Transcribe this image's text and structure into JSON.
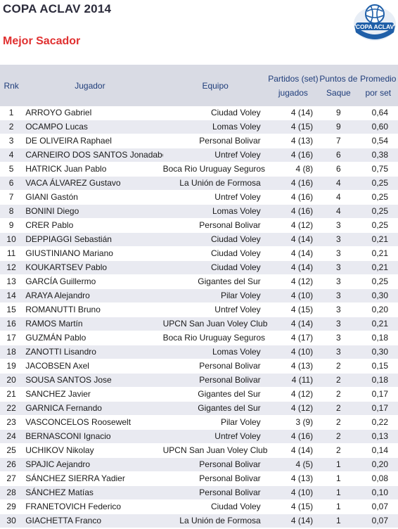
{
  "header": {
    "title": "COPA ACLAV 2014",
    "subtitle": "Mejor Sacador",
    "logo_text": "COPA ACLAV"
  },
  "table": {
    "columns": {
      "rank": "Rnk",
      "player": "Jugador",
      "team": "Equipo",
      "matches": "Partidos (set) jugados",
      "points": "Puntos de Saque",
      "average": "Promedio por set"
    },
    "rows": [
      {
        "rank": "1",
        "player": "ARROYO Gabriel",
        "team": "Ciudad Voley",
        "matches": "4 (14)",
        "points": "9",
        "average": "0,64"
      },
      {
        "rank": "2",
        "player": "OCAMPO Lucas",
        "team": "Lomas Voley",
        "matches": "4 (15)",
        "points": "9",
        "average": "0,60"
      },
      {
        "rank": "3",
        "player": "DE OLIVEIRA Raphael",
        "team": "Personal Bolivar",
        "matches": "4 (13)",
        "points": "7",
        "average": "0,54"
      },
      {
        "rank": "4",
        "player": "CARNEIRO DOS SANTOS Jonadabe",
        "team": "Untref Voley",
        "matches": "4 (16)",
        "points": "6",
        "average": "0,38"
      },
      {
        "rank": "5",
        "player": "HATRICK Juan Pablo",
        "team": "Boca Rio Uruguay Seguros",
        "matches": "4 (8)",
        "points": "6",
        "average": "0,75"
      },
      {
        "rank": "6",
        "player": "VACA ÁLVAREZ Gustavo",
        "team": "La Unión de Formosa",
        "matches": "4 (16)",
        "points": "4",
        "average": "0,25"
      },
      {
        "rank": "7",
        "player": "GIANI Gastón",
        "team": "Untref Voley",
        "matches": "4 (16)",
        "points": "4",
        "average": "0,25"
      },
      {
        "rank": "8",
        "player": "BONINI Diego",
        "team": "Lomas Voley",
        "matches": "4 (16)",
        "points": "4",
        "average": "0,25"
      },
      {
        "rank": "9",
        "player": "CRER Pablo",
        "team": "Personal Bolivar",
        "matches": "4 (12)",
        "points": "3",
        "average": "0,25"
      },
      {
        "rank": "10",
        "player": "DEPPIAGGI Sebastián",
        "team": "Ciudad Voley",
        "matches": "4 (14)",
        "points": "3",
        "average": "0,21"
      },
      {
        "rank": "11",
        "player": "GIUSTINIANO Mariano",
        "team": "Ciudad Voley",
        "matches": "4 (14)",
        "points": "3",
        "average": "0,21"
      },
      {
        "rank": "12",
        "player": "KOUKARTSEV Pablo",
        "team": "Ciudad Voley",
        "matches": "4 (14)",
        "points": "3",
        "average": "0,21"
      },
      {
        "rank": "13",
        "player": "GARCÍA Guillermo",
        "team": "Gigantes del Sur",
        "matches": "4 (12)",
        "points": "3",
        "average": "0,25"
      },
      {
        "rank": "14",
        "player": "ARAYA Alejandro",
        "team": "Pilar Voley",
        "matches": "4 (10)",
        "points": "3",
        "average": "0,30"
      },
      {
        "rank": "15",
        "player": "ROMANUTTI Bruno",
        "team": "Untref Voley",
        "matches": "4 (15)",
        "points": "3",
        "average": "0,20"
      },
      {
        "rank": "16",
        "player": "RAMOS Martín",
        "team": "UPCN San Juan Voley Club",
        "matches": "4 (14)",
        "points": "3",
        "average": "0,21"
      },
      {
        "rank": "17",
        "player": "GUZMÁN Pablo",
        "team": "Boca Rio Uruguay Seguros",
        "matches": "4 (17)",
        "points": "3",
        "average": "0,18"
      },
      {
        "rank": "18",
        "player": "ZANOTTI Lisandro",
        "team": "Lomas Voley",
        "matches": "4 (10)",
        "points": "3",
        "average": "0,30"
      },
      {
        "rank": "19",
        "player": "JACOBSEN Axel",
        "team": "Personal Bolivar",
        "matches": "4 (13)",
        "points": "2",
        "average": "0,15"
      },
      {
        "rank": "20",
        "player": "SOUSA SANTOS Jose",
        "team": "Personal Bolivar",
        "matches": "4 (11)",
        "points": "2",
        "average": "0,18"
      },
      {
        "rank": "21",
        "player": "SANCHEZ Javier",
        "team": "Gigantes del Sur",
        "matches": "4 (12)",
        "points": "2",
        "average": "0,17"
      },
      {
        "rank": "22",
        "player": "GARNICA Fernando",
        "team": "Gigantes del Sur",
        "matches": "4 (12)",
        "points": "2",
        "average": "0,17"
      },
      {
        "rank": "23",
        "player": "VASCONCELOS Roosewelt",
        "team": "Pilar Voley",
        "matches": "3 (9)",
        "points": "2",
        "average": "0,22"
      },
      {
        "rank": "24",
        "player": "BERNASCONI Ignacio",
        "team": "Untref Voley",
        "matches": "4 (16)",
        "points": "2",
        "average": "0,13"
      },
      {
        "rank": "25",
        "player": "UCHIKOV Nikolay",
        "team": "UPCN San Juan Voley Club",
        "matches": "4 (14)",
        "points": "2",
        "average": "0,14"
      },
      {
        "rank": "26",
        "player": "SPAJIC Aejandro",
        "team": "Personal Bolivar",
        "matches": "4 (5)",
        "points": "1",
        "average": "0,20"
      },
      {
        "rank": "27",
        "player": "SÁNCHEZ SIERRA Yadier",
        "team": "Personal Bolivar",
        "matches": "4 (13)",
        "points": "1",
        "average": "0,08"
      },
      {
        "rank": "28",
        "player": "SÁNCHEZ Matías",
        "team": "Personal Bolivar",
        "matches": "4 (10)",
        "points": "1",
        "average": "0,10"
      },
      {
        "rank": "29",
        "player": "FRANETOVICH Federico",
        "team": "Ciudad Voley",
        "matches": "4 (15)",
        "points": "1",
        "average": "0,07"
      },
      {
        "rank": "30",
        "player": "GIACHETTA Franco",
        "team": "La Unión de Formosa",
        "matches": "4 (14)",
        "points": "1",
        "average": "0,07"
      }
    ]
  },
  "colors": {
    "title": "#2c2c3c",
    "subtitle": "#e03030",
    "header_bg": "#d9dbe4",
    "header_text": "#1f3d7a",
    "stripe": "#e9eaf1",
    "logo_blue": "#1f5fa8"
  }
}
